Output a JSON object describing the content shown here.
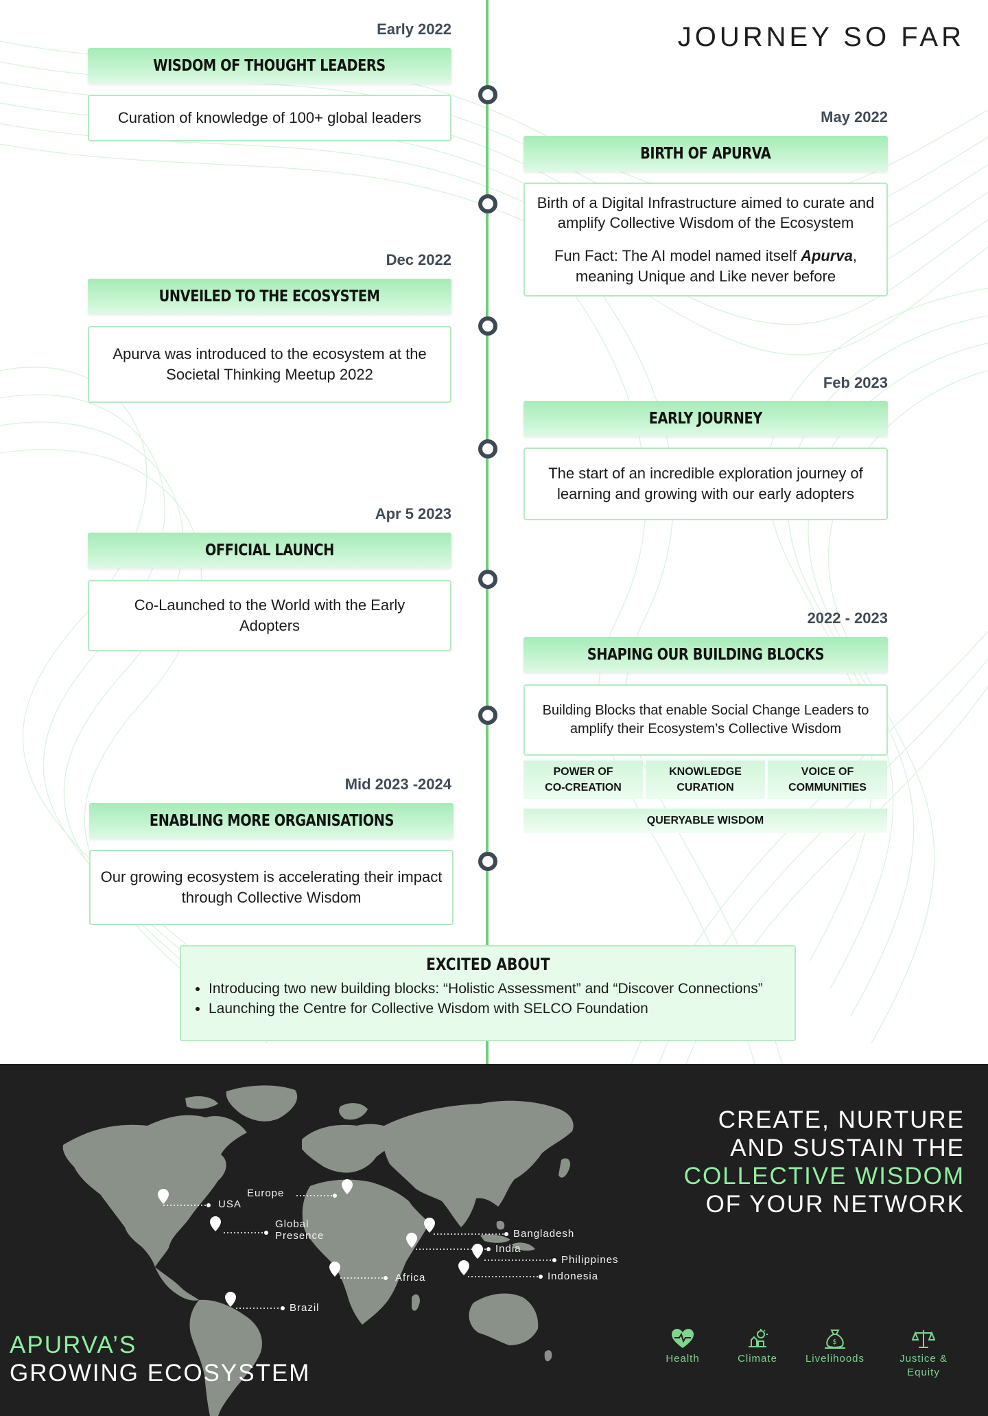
{
  "title": "JOURNEY SO FAR",
  "milestones": [
    {
      "date": "Early 2022",
      "heading": "WISDOM OF THOUGHT LEADERS",
      "body": "Curation of knowledge of 100+ global leaders"
    },
    {
      "date": "May 2022",
      "heading": "BIRTH OF APURVA",
      "body": "Birth of a Digital Infrastructure aimed to curate and amplify Collective Wisdom of the Ecosystem",
      "fun_prefix": "Fun Fact: The AI model named itself ",
      "fun_name": "Apurva",
      "fun_suffix": ", meaning Unique and Like never before"
    },
    {
      "date": "Dec 2022",
      "heading": "UNVEILED TO THE ECOSYSTEM",
      "body": "Apurva was introduced to the ecosystem at the Societal Thinking Meetup 2022"
    },
    {
      "date": "Feb 2023",
      "heading": "EARLY JOURNEY",
      "body": "The start of an incredible exploration journey of learning and growing with our early adopters"
    },
    {
      "date": "Apr 5 2023",
      "heading": "OFFICIAL LAUNCH",
      "body": "Co-Launched to the World with the Early Adopters"
    },
    {
      "date": "2022 - 2023",
      "heading": "SHAPING OUR BUILDING BLOCKS",
      "body": "Building Blocks that enable Social Change Leaders to amplify their Ecosystem’s Collective Wisdom"
    },
    {
      "date": "Mid  2023 -2024",
      "heading": "ENABLING MORE ORGANISATIONS",
      "body": "Our growing ecosystem is accelerating their impact through Collective Wisdom"
    }
  ],
  "building_blocks": {
    "items": [
      {
        "line1": "POWER OF",
        "line2": "CO-CREATION"
      },
      {
        "line1": "KNOWLEDGE",
        "line2": "CURATION"
      },
      {
        "line1": "VOICE OF",
        "line2": "COMMUNITIES"
      }
    ],
    "base": "QUERYABLE WISDOM"
  },
  "excited": {
    "title": "EXCITED ABOUT",
    "items": [
      "Introducing two new building blocks: “Holistic Assessment” and “Discover Connections”",
      "Launching the Centre for Collective Wisdom with SELCO Foundation"
    ]
  },
  "footer": {
    "tagline_l1": "CREATE, NURTURE",
    "tagline_l2": "AND SUSTAIN THE",
    "tagline_accent": "COLLECTIVE WISDOM",
    "tagline_l4": "OF YOUR NETWORK",
    "eco_l1": "APURVA’S",
    "eco_l2": "GROWING ECOSYSTEM",
    "locations": {
      "usa": "USA",
      "europe": "Europe",
      "global": "Global Presence",
      "bangladesh": "Bangladesh",
      "india": "India",
      "philippines": "Philippines",
      "indonesia": "Indonesia",
      "africa": "Africa",
      "brazil": "Brazil"
    },
    "causes": [
      {
        "label": "Health",
        "icon": "heart-pulse-icon"
      },
      {
        "label": "Climate",
        "icon": "climate-icon"
      },
      {
        "label": "Livelihoods",
        "icon": "money-bag-icon"
      },
      {
        "label": "Justice & Equity",
        "icon": "scales-icon"
      }
    ]
  },
  "colors": {
    "accent": "#6ccf7e",
    "node": "#3d4a55",
    "footer_bg": "#202020",
    "tagline_accent": "#8ef09f"
  }
}
